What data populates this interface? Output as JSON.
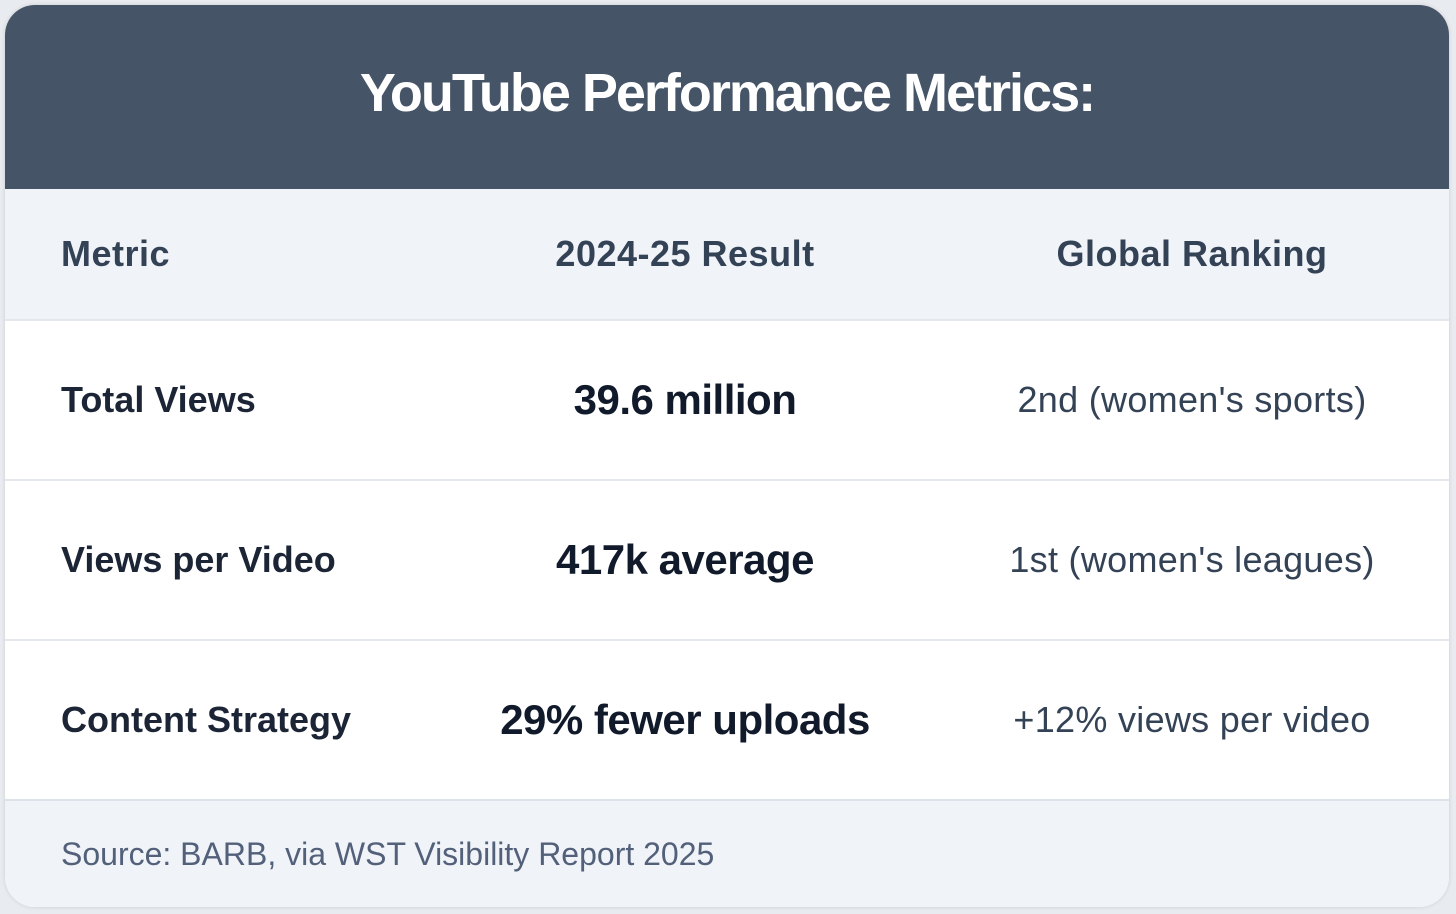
{
  "title": "YouTube Performance Metrics:",
  "table": {
    "headers": [
      "Metric",
      "2024-25 Result",
      "Global Ranking"
    ],
    "rows": [
      {
        "metric": "Total Views",
        "result": "39.6 million",
        "ranking": "2nd (women's sports)"
      },
      {
        "metric": "Views per Video",
        "result": "417k average",
        "ranking": "1st (women's leagues)"
      },
      {
        "metric": "Content Strategy",
        "result": "29% fewer uploads",
        "ranking": "+12% views per video"
      }
    ]
  },
  "footer": {
    "source": "Source: BARB, via WST Visibility Report 2025"
  },
  "colors": {
    "header_bg": "#465467",
    "table_head_bg": "#f0f3f8",
    "text_dark": "#111a2a",
    "text_muted": "#52607a"
  }
}
